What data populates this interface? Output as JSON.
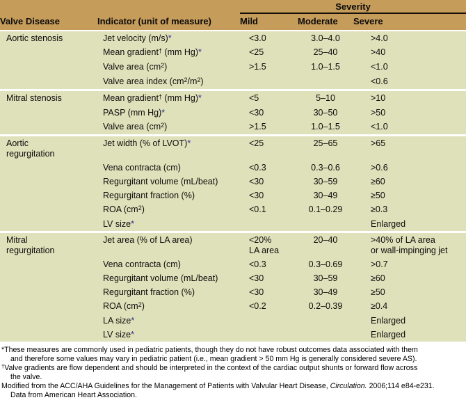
{
  "colors": {
    "header_bg": "#c69c5a",
    "row_bg": "#dfe1ba",
    "star_color": "#2e3192",
    "separator": "#ffffff",
    "severity_underline": "#151008"
  },
  "table": {
    "severity_label": "Severity",
    "columns": {
      "disease": "Valve Disease",
      "indicator": "Indicator (unit of measure)",
      "mild": "Mild",
      "moderate": "Moderate",
      "severe": "Severe"
    },
    "groups": [
      {
        "disease": "Aortic stenosis",
        "rows": [
          {
            "indicator": [
              {
                "t": "Jet velocity (m/s)"
              },
              {
                "t": "*",
                "s": "star"
              }
            ],
            "mild": "<3.0",
            "moderate": "3.0–4.0",
            "severe": ">4.0"
          },
          {
            "indicator": [
              {
                "t": "Mean gradient"
              },
              {
                "t": "†",
                "s": "sup"
              },
              {
                "t": " (mm Hg)"
              },
              {
                "t": "*",
                "s": "star"
              }
            ],
            "mild": "<25",
            "moderate": "25–40",
            "severe": ">40"
          },
          {
            "indicator": [
              {
                "t": "Valve area (cm"
              },
              {
                "t": "2",
                "s": "sup"
              },
              {
                "t": ")"
              }
            ],
            "mild": ">1.5",
            "moderate": "1.0–1.5",
            "severe": "<1.0"
          },
          {
            "indicator": [
              {
                "t": "Valve area index (cm"
              },
              {
                "t": "2",
                "s": "sup"
              },
              {
                "t": "/m"
              },
              {
                "t": "2",
                "s": "sup"
              },
              {
                "t": ")"
              }
            ],
            "mild": "",
            "moderate": "",
            "severe": "<0.6"
          }
        ]
      },
      {
        "disease": "Mitral stenosis",
        "rows": [
          {
            "indicator": [
              {
                "t": "Mean gradient"
              },
              {
                "t": "†",
                "s": "sup"
              },
              {
                "t": " (mm Hg)"
              },
              {
                "t": "*",
                "s": "star"
              }
            ],
            "mild": "<5",
            "moderate": "5–10",
            "severe": ">10"
          },
          {
            "indicator": [
              {
                "t": "PASP (mm Hg)"
              },
              {
                "t": "*",
                "s": "star"
              }
            ],
            "mild": "<30",
            "moderate": "30–50",
            "severe": ">50"
          },
          {
            "indicator": [
              {
                "t": "Valve area (cm"
              },
              {
                "t": "2",
                "s": "sup"
              },
              {
                "t": ")"
              }
            ],
            "mild": ">1.5",
            "moderate": "1.0–1.5",
            "severe": "<1.0"
          }
        ]
      },
      {
        "disease": "Aortic\nregurgitation",
        "rows": [
          {
            "indicator": [
              {
                "t": "Jet width (% of LVOT)"
              },
              {
                "t": "*",
                "s": "star"
              }
            ],
            "mild": "<25",
            "moderate": "25–65",
            "severe": ">65"
          },
          {
            "indicator": [
              {
                "t": "Vena contracta (cm)"
              }
            ],
            "mild": "<0.3",
            "moderate": "0.3–0.6",
            "severe": ">0.6"
          },
          {
            "indicator": [
              {
                "t": "Regurgitant volume (mL/beat)"
              }
            ],
            "mild": "<30",
            "moderate": "30–59",
            "severe": "≥60"
          },
          {
            "indicator": [
              {
                "t": "Regurgitant fraction (%)"
              }
            ],
            "mild": "<30",
            "moderate": "30–49",
            "severe": "≥50"
          },
          {
            "indicator": [
              {
                "t": "ROA (cm"
              },
              {
                "t": "2",
                "s": "sup"
              },
              {
                "t": ")"
              }
            ],
            "mild": "<0.1",
            "moderate": "0.1–0.29",
            "severe": "≥0.3"
          },
          {
            "indicator": [
              {
                "t": "LV size"
              },
              {
                "t": "*",
                "s": "star"
              }
            ],
            "mild": "",
            "moderate": "",
            "severe": "Enlarged"
          }
        ]
      },
      {
        "disease": "Mitral\nregurgitation",
        "rows": [
          {
            "indicator": [
              {
                "t": "Jet area (% of LA area)"
              }
            ],
            "mild": "<20%\nLA area",
            "moderate": "20–40",
            "severe": ">40% of LA area\nor wall-impinging jet"
          },
          {
            "indicator": [
              {
                "t": "Vena contracta (cm)"
              }
            ],
            "mild": "<0.3",
            "moderate": "0.3–0.69",
            "severe": ">0.7"
          },
          {
            "indicator": [
              {
                "t": "Regurgitant volume (mL/beat)"
              }
            ],
            "mild": "<30",
            "moderate": "30–59",
            "severe": "≥60"
          },
          {
            "indicator": [
              {
                "t": "Regurgitant fraction (%)"
              }
            ],
            "mild": "<30",
            "moderate": "30–49",
            "severe": "≥50"
          },
          {
            "indicator": [
              {
                "t": "ROA (cm"
              },
              {
                "t": "2",
                "s": "sup"
              },
              {
                "t": ")"
              }
            ],
            "mild": "<0.2",
            "moderate": "0.2–0.39",
            "severe": "≥0.4"
          },
          {
            "indicator": [
              {
                "t": "LA size"
              },
              {
                "t": "*",
                "s": "star"
              }
            ],
            "mild": "",
            "moderate": "",
            "severe": "Enlarged"
          },
          {
            "indicator": [
              {
                "t": "LV size"
              },
              {
                "t": "*",
                "s": "star"
              }
            ],
            "mild": "",
            "moderate": "",
            "severe": "Enlarged"
          }
        ]
      }
    ]
  },
  "footnotes": [
    [
      {
        "t": "*These measures are commonly used in pediatric patients, though they do not have robust outcomes data associated with them\nand therefore some values may vary in pediatric patient (i.e., mean gradient > 50 mm Hg is generally considered severe AS)."
      }
    ],
    [
      {
        "t": "†",
        "s": "sup"
      },
      {
        "t": "Valve gradients are flow dependent and should be interpreted in the context of the cardiac output shunts or forward flow across\nthe valve."
      }
    ],
    [
      {
        "t": "Modified from the ACC/AHA Guidelines for the Management of Patients with Valvular Heart Disease, "
      },
      {
        "t": "Circulation.",
        "s": "italic"
      },
      {
        "t": " 2006;114 e84-e231.\nData from American Heart Association."
      }
    ]
  ]
}
